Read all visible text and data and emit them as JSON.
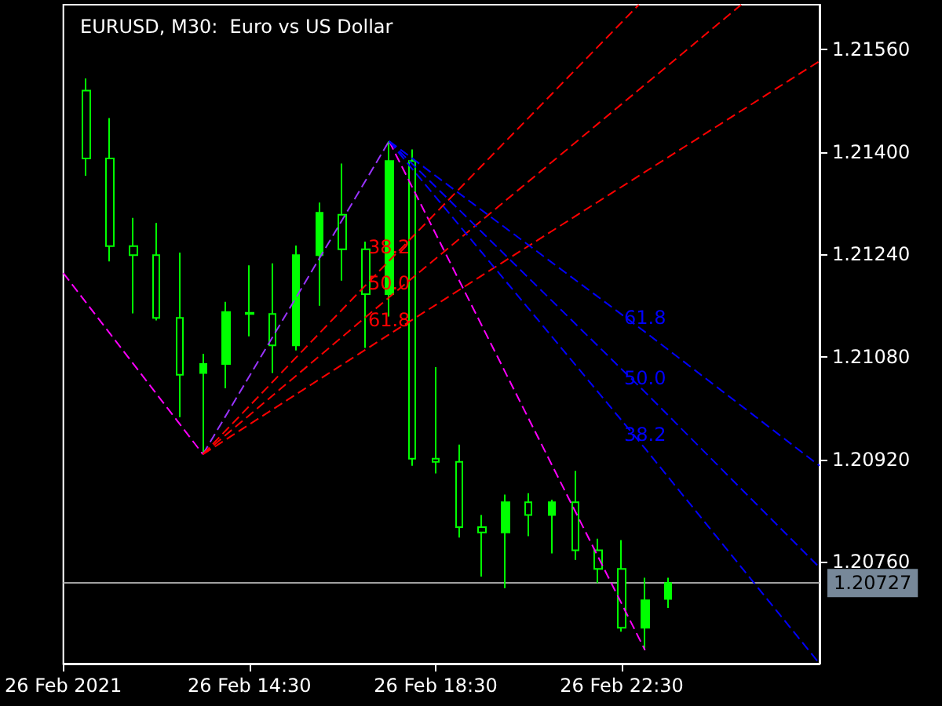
{
  "chart_data": {
    "type": "candlestick",
    "title": "EURUSD, M30:  Euro vs US Dollar",
    "xlim": [
      "2021-02-26T10:30",
      "2021-02-27T02:45"
    ],
    "xticks": [
      {
        "value": "2021-02-26T10:30",
        "label": "26 Feb 2021"
      },
      {
        "value": "2021-02-26T14:30",
        "label": "26 Feb 14:30"
      },
      {
        "value": "2021-02-26T18:30",
        "label": "26 Feb 18:30"
      },
      {
        "value": "2021-02-26T22:30",
        "label": "26 Feb 22:30"
      }
    ],
    "ylim": [
      1.20601,
      1.2163
    ],
    "yticks": [
      {
        "value": 1.2076,
        "label": "1.20760"
      },
      {
        "value": 1.2092,
        "label": "1.20920"
      },
      {
        "value": 1.2108,
        "label": "1.21080"
      },
      {
        "value": 1.2124,
        "label": "1.21240"
      },
      {
        "value": 1.214,
        "label": "1.21400"
      },
      {
        "value": 1.2156,
        "label": "1.21560"
      }
    ],
    "ref_lines": [
      {
        "axis": "y",
        "value": 1.20727,
        "label": "1.20727",
        "color": "#a0a0a0"
      }
    ],
    "series": [
      {
        "color": "#00ff00",
        "x": [
          "2021-02-26T11:00",
          "2021-02-26T11:30",
          "2021-02-26T12:00",
          "2021-02-26T12:30",
          "2021-02-26T13:00",
          "2021-02-26T13:30",
          "2021-02-26T14:00",
          "2021-02-26T14:30",
          "2021-02-26T15:00",
          "2021-02-26T15:30",
          "2021-02-26T16:00",
          "2021-02-26T16:30",
          "2021-02-26T17:00",
          "2021-02-26T17:30",
          "2021-02-26T18:00",
          "2021-02-26T18:30",
          "2021-02-26T19:00",
          "2021-02-26T19:30",
          "2021-02-26T20:00",
          "2021-02-26T20:30",
          "2021-02-26T21:00",
          "2021-02-26T21:30",
          "2021-02-26T22:00",
          "2021-02-26T22:30",
          "2021-02-26T23:00",
          "2021-02-26T23:30"
        ],
        "ohlc": [
          [
            1.21496,
            1.21515,
            1.21363,
            1.2139
          ],
          [
            1.2139,
            1.21453,
            1.21229,
            1.21253
          ],
          [
            1.21253,
            1.21297,
            1.21148,
            1.21239
          ],
          [
            1.21239,
            1.21289,
            1.21137,
            1.21141
          ],
          [
            1.21141,
            1.21243,
            1.20986,
            1.21052
          ],
          [
            1.21055,
            1.21085,
            1.20928,
            1.21069
          ],
          [
            1.21069,
            1.21166,
            1.21031,
            1.2115
          ],
          [
            1.21149,
            1.21223,
            1.21112,
            1.21147
          ],
          [
            1.21147,
            1.21226,
            1.21055,
            1.21098
          ],
          [
            1.21098,
            1.21254,
            1.2109,
            1.21239
          ],
          [
            1.21239,
            1.21321,
            1.2116,
            1.21305
          ],
          [
            1.21302,
            1.21382,
            1.21199,
            1.21248
          ],
          [
            1.21248,
            1.2126,
            1.21094,
            1.21178
          ],
          [
            1.21178,
            1.21417,
            1.21143,
            1.21386
          ],
          [
            1.21386,
            1.21404,
            1.2091,
            1.20921
          ],
          [
            1.20921,
            1.21064,
            1.20898,
            1.20916
          ],
          [
            1.20916,
            1.20943,
            1.20798,
            1.20814
          ],
          [
            1.20814,
            1.20833,
            1.20737,
            1.20806
          ],
          [
            1.20806,
            1.20865,
            1.20719,
            1.20853
          ],
          [
            1.20853,
            1.20867,
            1.208,
            1.20833
          ],
          [
            1.20833,
            1.20857,
            1.20773,
            1.20853
          ],
          [
            1.20853,
            1.20902,
            1.20763,
            1.20778
          ],
          [
            1.20778,
            1.20796,
            1.20727,
            1.20749
          ],
          [
            1.20749,
            1.20794,
            1.20651,
            1.20657
          ],
          [
            1.20657,
            1.20735,
            1.20622,
            1.207
          ],
          [
            1.20702,
            1.20735,
            1.20688,
            1.20727
          ]
        ]
      },
      {
        "type": "line",
        "color": "#ff00ff",
        "line_style": "dashed",
        "x": [
          "2021-02-26T10:30",
          "2021-02-26T13:30"
        ],
        "values": [
          1.21211,
          1.20928
        ]
      },
      {
        "type": "line",
        "color": "#ff00ff",
        "line_style": "dashed",
        "x": [
          "2021-02-26T17:30",
          "2021-02-26T23:00"
        ],
        "values": [
          1.21417,
          1.20622
        ]
      },
      {
        "type": "line",
        "color": "#9933ff",
        "line_style": "dashed",
        "x": [
          "2021-02-26T13:30",
          "2021-02-26T17:30"
        ],
        "values": [
          1.20928,
          1.21417
        ]
      },
      {
        "type": "line",
        "name": "38.2",
        "color": "#ff0000",
        "line_style": "dashed",
        "x": [
          "2021-02-26T13:30",
          "2021-02-26T17:30",
          "2021-02-26T22:52"
        ],
        "values": [
          1.20928,
          1.2123,
          1.2163
        ]
      },
      {
        "type": "line",
        "name": "50.0",
        "color": "#ff0000",
        "line_style": "dashed",
        "x": [
          "2021-02-26T13:30",
          "2021-02-26T17:30",
          "2021-02-27T01:04"
        ],
        "values": [
          1.20928,
          1.21173,
          1.2163
        ]
      },
      {
        "type": "line",
        "name": "61.8",
        "color": "#ff0000",
        "line_style": "dashed",
        "x": [
          "2021-02-26T13:30",
          "2021-02-26T17:30",
          "2021-02-27T02:45"
        ],
        "values": [
          1.20928,
          1.21115,
          1.21542
        ]
      },
      {
        "type": "line",
        "name": "61.8",
        "color": "#0000ff",
        "line_style": "dashed",
        "x": [
          "2021-02-26T17:30",
          "2021-02-26T23:00",
          "2021-02-27T02:45"
        ],
        "values": [
          1.21417,
          1.21119,
          1.2091
        ]
      },
      {
        "type": "line",
        "name": "50.0",
        "color": "#0000ff",
        "line_style": "dashed",
        "x": [
          "2021-02-26T17:30",
          "2021-02-26T23:00",
          "2021-02-27T02:45"
        ],
        "values": [
          1.21417,
          1.21025,
          1.20751
        ]
      },
      {
        "type": "line",
        "name": "38.2",
        "color": "#0000ff",
        "line_style": "dashed",
        "x": [
          "2021-02-26T17:30",
          "2021-02-26T23:00",
          "2021-02-27T02:45"
        ],
        "values": [
          1.21417,
          1.20937,
          1.20601
        ]
      }
    ]
  }
}
